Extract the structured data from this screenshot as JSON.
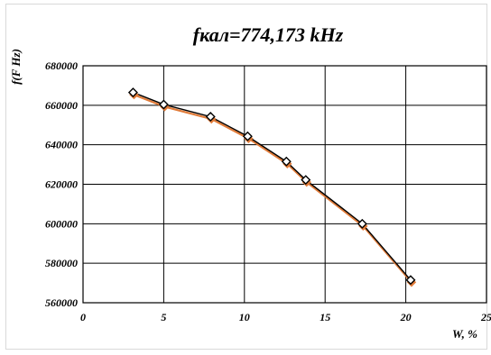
{
  "chart_data": {
    "type": "line",
    "title": "fкал=774,173 kHz",
    "xlabel": "W, %",
    "ylabel": "f(F Hz)",
    "xlim": [
      0,
      25
    ],
    "ylim": [
      560000,
      680000
    ],
    "x_ticks": [
      "0",
      "5",
      "10",
      "15",
      "20",
      "25"
    ],
    "y_ticks": [
      "560000",
      "580000",
      "600000",
      "620000",
      "640000",
      "660000",
      "680000"
    ],
    "grid": true,
    "legend": "none",
    "series": [
      {
        "x": [
          3.1,
          5.0,
          7.9,
          10.2,
          12.6,
          13.8,
          17.3,
          20.3
        ],
        "y": [
          666500,
          660400,
          654200,
          644300,
          631500,
          622200,
          600000,
          571500
        ],
        "marker": "diamond",
        "marker_color": "#ffffff",
        "marker_edge": "#000000",
        "shadow_color": "#e07b39",
        "line_color": "#000000"
      }
    ]
  }
}
